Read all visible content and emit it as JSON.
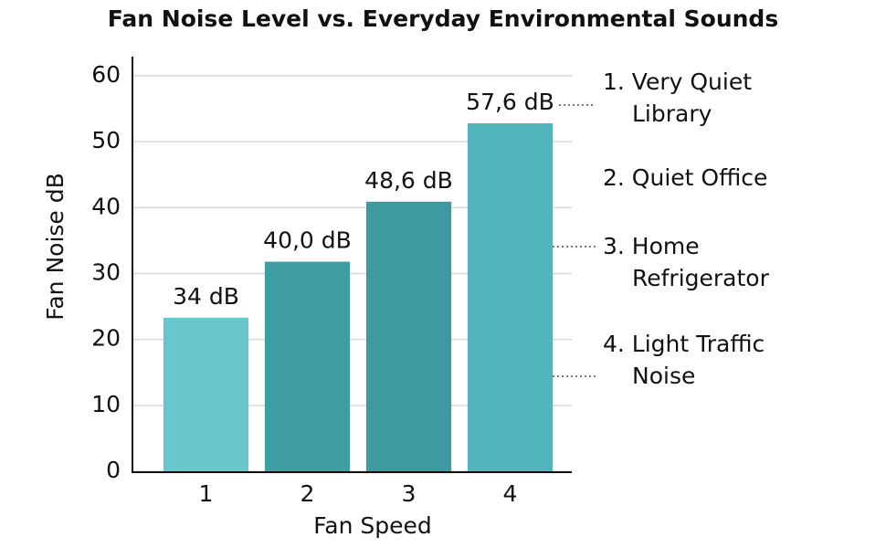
{
  "chart_data": {
    "type": "bar",
    "title": "Fan Noise Level vs. Everyday Environmental Sounds",
    "x_label": "Fan Speed",
    "y_label": "Fan Noise dB",
    "categories": [
      "1",
      "2",
      "3",
      "4"
    ],
    "values": [
      23.3,
      31.8,
      40.9,
      52.8
    ],
    "colors": [
      "#67c6cb",
      "#3f9ea3",
      "#3c9aa0",
      "#52b4bd"
    ],
    "annotations": [
      "34 dB",
      "40,0 dB",
      "48,6 dB",
      "57,6 dB"
    ],
    "ylim": [
      0,
      60
    ],
    "yticks": [
      0,
      10,
      20,
      30,
      40,
      50,
      60
    ],
    "grid": true,
    "reference_sounds": [
      "1. Very Quiet Library",
      "2. Quiet Office",
      "3. Home Refrigerator",
      "4. Light Traffic Noise"
    ]
  }
}
